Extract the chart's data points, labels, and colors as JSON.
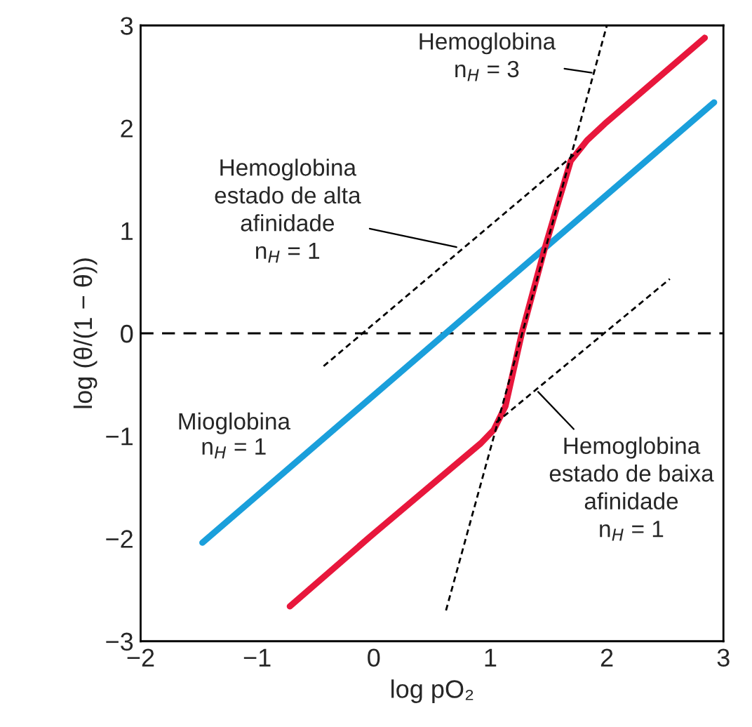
{
  "chart_data": {
    "type": "line",
    "xlabel": "log pO₂",
    "ylabel": "log (θ/(1 − θ))",
    "xlim": [
      -2,
      3
    ],
    "ylim": [
      -3,
      3
    ],
    "xticks": [
      {
        "value": -2,
        "label": "−2"
      },
      {
        "value": -1,
        "label": "−1"
      },
      0,
      1,
      2,
      3
    ],
    "yticks": [
      {
        "value": -3,
        "label": "−3"
      },
      {
        "value": -2,
        "label": "−2"
      },
      {
        "value": -1,
        "label": "−1"
      },
      0,
      1,
      2,
      3
    ],
    "grid": false,
    "legend": false,
    "marker": "none",
    "series": [
      {
        "name": "Mioglobina\nn$_{H}$ = 1",
        "color": "#1a9fdb",
        "x": [
          -1.47,
          2.92
        ],
        "values": [
          -2.04,
          2.25
        ]
      },
      {
        "color": "#e8173c",
        "x": [
          -0.72,
          -0.03,
          0.92,
          1.03,
          1.13,
          1.27,
          1.47,
          1.6,
          1.69,
          1.83,
          1.98,
          2.84
        ],
        "values": [
          -2.66,
          -1.98,
          -1.07,
          -0.94,
          -0.71,
          0.0,
          0.84,
          1.34,
          1.68,
          1.88,
          2.04,
          2.88
        ]
      },
      {
        "color": "#000000",
        "line_style": "dashed",
        "x": [
          -0.43,
          1.79
        ],
        "values": [
          -0.32,
          1.81
        ]
      },
      {
        "color": "#000000",
        "line_style": "dashed",
        "x": [
          1.05,
          2.54
        ],
        "values": [
          -0.87,
          0.53
        ]
      },
      {
        "color": "#000000",
        "line_style": "dashed",
        "x": [
          0.62,
          2.0
        ],
        "values": [
          -2.7,
          3.0
        ]
      }
    ],
    "ref_lines": [
      {
        "axis": "y",
        "value": 0,
        "color": "#000000",
        "line_style": "dashed"
      }
    ],
    "annotations": [
      {
        "text": "Hemoglobina\nn$_{H}$ = 3",
        "x": 1.87,
        "y": 2.54
      },
      {
        "text": "Hemoglobina\nestado de alta\nafinidade\nn$_{H}$ = 1",
        "x": 0.71,
        "y": 0.84
      },
      {
        "text": "Hemoglobina\nestado de baixa\nafinidade\nn$_{H}$ = 1",
        "x": 1.41,
        "y": -0.57
      }
    ]
  }
}
